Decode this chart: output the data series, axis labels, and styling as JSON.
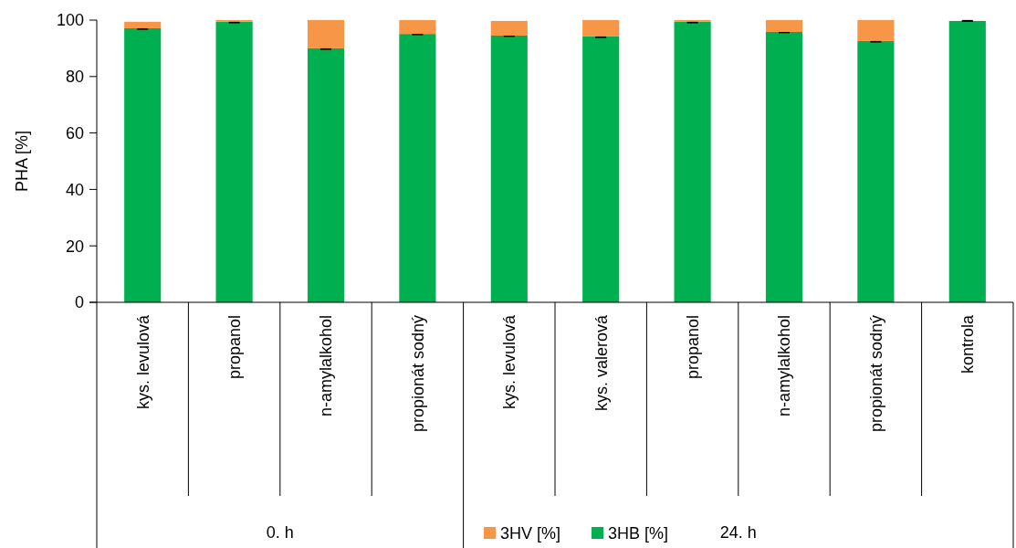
{
  "chart_data": {
    "type": "bar",
    "ylabel": "PHA [%]",
    "stacked": true,
    "categories": [
      "kys. levulová",
      "propanol",
      "n-amylalkohol",
      "propionát sodný",
      "kys. levulová",
      "kys. valerová",
      "propanol",
      "n-amylalkohol",
      "propionát sodný",
      "kontrola"
    ],
    "series": [
      {
        "name": "3HB [%]",
        "color": "#00b050",
        "values": [
          97.1,
          99.4,
          90.0,
          95.1,
          94.5,
          94.2,
          99.4,
          95.8,
          92.6,
          99.7
        ],
        "errors": [
          0.3,
          0.3,
          0.3,
          0.2,
          0.2,
          0.3,
          0.3,
          0.2,
          0.3,
          0.1
        ]
      },
      {
        "name": "3HV [%]",
        "color": "#f79646",
        "values": [
          2.3,
          0.6,
          10.0,
          4.9,
          5.2,
          5.8,
          0.6,
          4.2,
          7.4,
          0
        ]
      }
    ],
    "ylim": [
      0,
      100
    ],
    "yticks": [
      0,
      20,
      40,
      60,
      80,
      100
    ],
    "grid": false,
    "legend": "bottom",
    "annotations": [
      "0. h",
      "24. h"
    ]
  }
}
